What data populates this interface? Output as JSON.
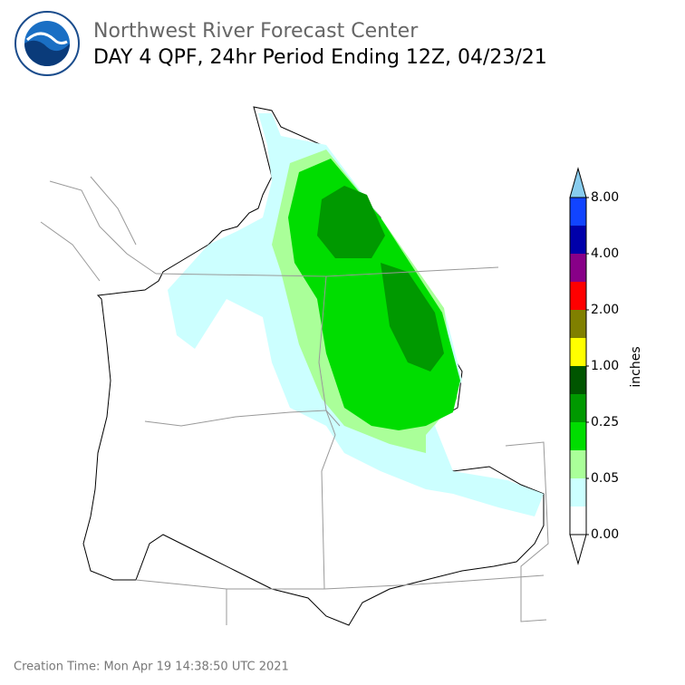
{
  "header": {
    "title": "Northwest River Forecast Center",
    "subtitle": "DAY 4 QPF, 24hr Period Ending 12Z, 04/23/21"
  },
  "colorbar": {
    "label": "inches",
    "colors": [
      "#ffffff",
      "#ccffff",
      "#aaff99",
      "#00dd00",
      "#009900",
      "#005500",
      "#ffff00",
      "#808000",
      "#ff0000",
      "#880088",
      "#0000aa",
      "#1144ff"
    ],
    "extend_colors": [
      "#ffffff",
      "#88ccee"
    ],
    "ticks": [
      {
        "value": 0,
        "label": "0.00"
      },
      {
        "value": 0.05,
        "label": "0.05"
      },
      {
        "value": 0.25,
        "label": "0.25"
      },
      {
        "value": 1,
        "label": "1.00"
      },
      {
        "value": 2,
        "label": "2.00"
      },
      {
        "value": 4,
        "label": "4.00"
      },
      {
        "value": 8,
        "label": "8.00"
      }
    ]
  },
  "footer": {
    "creation_time": "Creation Time: Mon Apr 19 14:38:50 UTC 2021"
  }
}
